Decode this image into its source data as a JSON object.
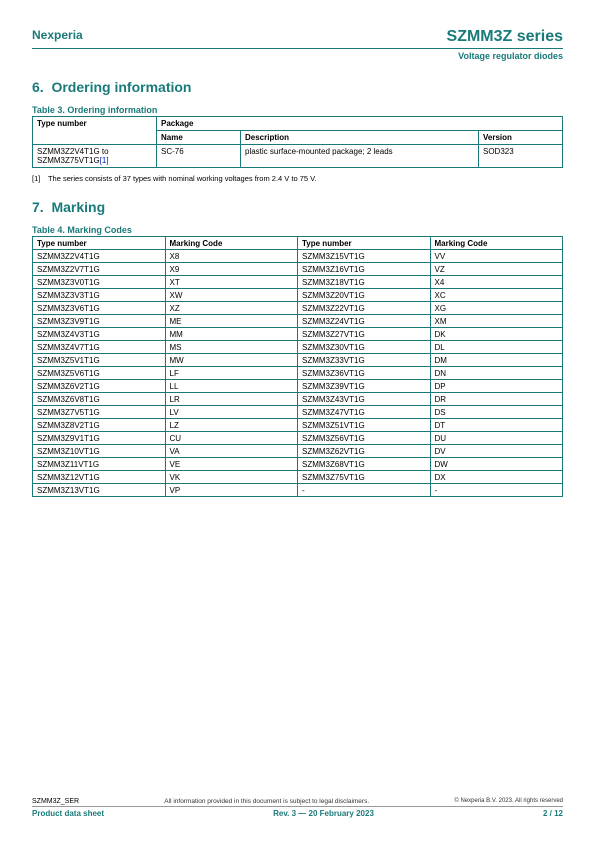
{
  "header": {
    "brand": "Nexperia",
    "series": "SZMM3Z series",
    "subtitle": "Voltage regulator diodes"
  },
  "section6": {
    "num": "6.",
    "title": "Ordering information",
    "tableCaption": "Table 3. Ordering information",
    "th_type": "Type number",
    "th_package": "Package",
    "th_name": "Name",
    "th_desc": "Description",
    "th_ver": "Version",
    "row": {
      "type_a": "SZMM3Z2V4T1G to",
      "type_b": "SZMM3Z75VT1G",
      "link": "[1]",
      "name": "SC-76",
      "desc": "plastic surface-mounted package; 2 leads",
      "ver": "SOD323"
    },
    "footnote_num": "[1]",
    "footnote_txt": "The series consists of 37 types with nominal working voltages from 2.4 V to 75 V."
  },
  "section7": {
    "num": "7.",
    "title": "Marking",
    "tableCaption": "Table 4. Marking Codes",
    "th_type": "Type number",
    "th_code": "Marking Code",
    "rows": [
      {
        "t1": "SZMM3Z2V4T1G",
        "c1": "X8",
        "t2": "SZMM3Z15VT1G",
        "c2": "VV"
      },
      {
        "t1": "SZMM3Z2V7T1G",
        "c1": "X9",
        "t2": "SZMM3Z16VT1G",
        "c2": "VZ"
      },
      {
        "t1": "SZMM3Z3V0T1G",
        "c1": "XT",
        "t2": "SZMM3Z18VT1G",
        "c2": "X4"
      },
      {
        "t1": "SZMM3Z3V3T1G",
        "c1": "XW",
        "t2": "SZMM3Z20VT1G",
        "c2": "XC"
      },
      {
        "t1": "SZMM3Z3V6T1G",
        "c1": "XZ",
        "t2": "SZMM3Z22VT1G",
        "c2": "XG"
      },
      {
        "t1": "SZMM3Z3V9T1G",
        "c1": "ME",
        "t2": "SZMM3Z24VT1G",
        "c2": "XM"
      },
      {
        "t1": "SZMM3Z4V3T1G",
        "c1": "MM",
        "t2": "SZMM3Z27VT1G",
        "c2": "DK"
      },
      {
        "t1": "SZMM3Z4V7T1G",
        "c1": "MS",
        "t2": "SZMM3Z30VT1G",
        "c2": "DL"
      },
      {
        "t1": "SZMM3Z5V1T1G",
        "c1": "MW",
        "t2": "SZMM3Z33VT1G",
        "c2": "DM"
      },
      {
        "t1": "SZMM3Z5V6T1G",
        "c1": "LF",
        "t2": "SZMM3Z36VT1G",
        "c2": "DN"
      },
      {
        "t1": "SZMM3Z6V2T1G",
        "c1": "LL",
        "t2": "SZMM3Z39VT1G",
        "c2": "DP"
      },
      {
        "t1": "SZMM3Z6V8T1G",
        "c1": "LR",
        "t2": "SZMM3Z43VT1G",
        "c2": "DR"
      },
      {
        "t1": "SZMM3Z7V5T1G",
        "c1": "LV",
        "t2": "SZMM3Z47VT1G",
        "c2": "DS"
      },
      {
        "t1": "SZMM3Z8V2T1G",
        "c1": "LZ",
        "t2": "SZMM3Z51VT1G",
        "c2": "DT"
      },
      {
        "t1": "SZMM3Z9V1T1G",
        "c1": "CU",
        "t2": "SZMM3Z56VT1G",
        "c2": "DU"
      },
      {
        "t1": "SZMM3Z10VT1G",
        "c1": "VA",
        "t2": "SZMM3Z62VT1G",
        "c2": "DV"
      },
      {
        "t1": "SZMM3Z11VT1G",
        "c1": "VE",
        "t2": "SZMM3Z68VT1G",
        "c2": "DW"
      },
      {
        "t1": "SZMM3Z12VT1G",
        "c1": "VK",
        "t2": "SZMM3Z75VT1G",
        "c2": "DX"
      },
      {
        "t1": "SZMM3Z13VT1G",
        "c1": "VP",
        "t2": "-",
        "c2": "-"
      }
    ]
  },
  "footer": {
    "docid": "SZMM3Z_SER",
    "disclaimer": "All information provided in this document is subject to legal disclaimers.",
    "copyright": "© Nexperia B.V. 2023. All rights reserved",
    "doctype": "Product data sheet",
    "rev": "Rev. 3 — 20 February 2023",
    "page": "2 / 12"
  }
}
